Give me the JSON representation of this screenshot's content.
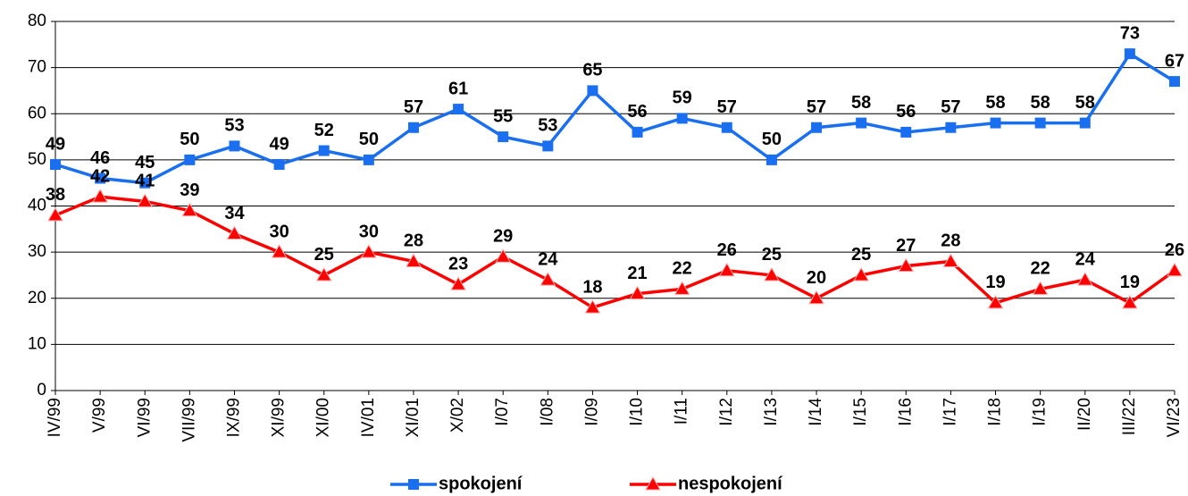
{
  "chart_data": {
    "type": "line",
    "categories": [
      "IV/99",
      "V/99",
      "VI/99",
      "VII/99",
      "IX/99",
      "XI/99",
      "XI/00",
      "IV/01",
      "XI/01",
      "X/02",
      "I/07",
      "I/08",
      "I/09",
      "I/10",
      "I/11",
      "I/12",
      "I/13",
      "I/14",
      "I/15",
      "I/16",
      "I/17",
      "I/18",
      "I/19",
      "II/20",
      "III/22",
      "VI/23"
    ],
    "series": [
      {
        "name": "spokojení",
        "color": "#1a6ff0",
        "marker": "square",
        "values": [
          49,
          46,
          45,
          50,
          53,
          49,
          52,
          50,
          57,
          61,
          55,
          53,
          65,
          56,
          59,
          57,
          50,
          57,
          58,
          56,
          57,
          58,
          58,
          58,
          73,
          67
        ]
      },
      {
        "name": "nespokojení",
        "color": "#ff0000",
        "marker": "triangle",
        "values": [
          38,
          42,
          41,
          39,
          34,
          30,
          25,
          30,
          28,
          23,
          29,
          24,
          18,
          21,
          22,
          26,
          25,
          20,
          25,
          27,
          28,
          19,
          22,
          24,
          19,
          26
        ]
      }
    ],
    "ylim": [
      0,
      80
    ],
    "yticks": [
      0,
      10,
      20,
      30,
      40,
      50,
      60,
      70,
      80
    ],
    "grid": true,
    "legend": "bottom"
  }
}
